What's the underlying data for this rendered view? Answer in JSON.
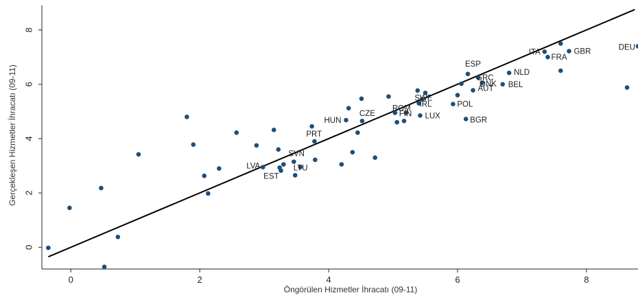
{
  "chart_data": {
    "type": "scatter",
    "title": "",
    "xlabel": "Öngörülen Hizmetler İhracatı (09-11)",
    "ylabel": "Gerçekleşen Hizmetler İhracatı (09-11)",
    "xlim": [
      -0.45,
      8.8
    ],
    "ylim": [
      -0.8,
      8.9
    ],
    "xticks": [
      0,
      2,
      4,
      6,
      8
    ],
    "yticks": [
      0,
      2,
      4,
      6,
      8
    ],
    "grid": false,
    "point_color": "#1f4e79",
    "fit_line": {
      "x": [
        -0.35,
        8.75
      ],
      "y": [
        -0.35,
        8.75
      ],
      "color": "#000000"
    },
    "points": [
      {
        "x": -0.35,
        "y": -0.02,
        "label": ""
      },
      {
        "x": -0.02,
        "y": 1.45,
        "label": ""
      },
      {
        "x": 0.47,
        "y": 2.18,
        "label": ""
      },
      {
        "x": 0.52,
        "y": -0.72,
        "label": ""
      },
      {
        "x": 0.73,
        "y": 0.38,
        "label": ""
      },
      {
        "x": 1.05,
        "y": 3.42,
        "label": ""
      },
      {
        "x": 1.8,
        "y": 4.8,
        "label": ""
      },
      {
        "x": 1.9,
        "y": 3.78,
        "label": ""
      },
      {
        "x": 2.07,
        "y": 2.63,
        "label": ""
      },
      {
        "x": 2.13,
        "y": 1.98,
        "label": ""
      },
      {
        "x": 2.3,
        "y": 2.9,
        "label": ""
      },
      {
        "x": 2.57,
        "y": 4.22,
        "label": ""
      },
      {
        "x": 2.88,
        "y": 3.75,
        "label": ""
      },
      {
        "x": 2.98,
        "y": 2.95,
        "label": "LVA"
      },
      {
        "x": 3.15,
        "y": 4.32,
        "label": ""
      },
      {
        "x": 3.22,
        "y": 3.6,
        "label": ""
      },
      {
        "x": 3.24,
        "y": 2.93,
        "label": ""
      },
      {
        "x": 3.26,
        "y": 2.82,
        "label": "EST"
      },
      {
        "x": 3.3,
        "y": 3.05,
        "label": ""
      },
      {
        "x": 3.46,
        "y": 3.15,
        "label": "SVN"
      },
      {
        "x": 3.48,
        "y": 2.65,
        "label": ""
      },
      {
        "x": 3.56,
        "y": 2.95,
        "label": "LTU"
      },
      {
        "x": 3.74,
        "y": 4.45,
        "label": ""
      },
      {
        "x": 3.78,
        "y": 3.9,
        "label": "PRT"
      },
      {
        "x": 3.79,
        "y": 3.22,
        "label": ""
      },
      {
        "x": 4.2,
        "y": 3.05,
        "label": ""
      },
      {
        "x": 4.27,
        "y": 4.68,
        "label": "HUN"
      },
      {
        "x": 4.31,
        "y": 5.12,
        "label": ""
      },
      {
        "x": 4.37,
        "y": 3.5,
        "label": ""
      },
      {
        "x": 4.45,
        "y": 4.22,
        "label": ""
      },
      {
        "x": 4.51,
        "y": 5.47,
        "label": ""
      },
      {
        "x": 4.52,
        "y": 4.65,
        "label": "CZE"
      },
      {
        "x": 4.72,
        "y": 3.3,
        "label": ""
      },
      {
        "x": 4.93,
        "y": 5.55,
        "label": ""
      },
      {
        "x": 5.03,
        "y": 4.95,
        "label": "ROM"
      },
      {
        "x": 5.06,
        "y": 4.6,
        "label": ""
      },
      {
        "x": 5.17,
        "y": 4.65,
        "label": ""
      },
      {
        "x": 5.2,
        "y": 4.95,
        "label": "FIN"
      },
      {
        "x": 5.38,
        "y": 5.77,
        "label": ""
      },
      {
        "x": 5.4,
        "y": 5.3,
        "label": "IRL"
      },
      {
        "x": 5.42,
        "y": 4.85,
        "label": "LUX"
      },
      {
        "x": 5.45,
        "y": 5.45,
        "label": "SWE"
      },
      {
        "x": 5.5,
        "y": 5.68,
        "label": ""
      },
      {
        "x": 5.93,
        "y": 5.27,
        "label": "POL"
      },
      {
        "x": 6.0,
        "y": 5.6,
        "label": ""
      },
      {
        "x": 6.06,
        "y": 6.02,
        "label": ""
      },
      {
        "x": 6.13,
        "y": 4.72,
        "label": "BGR"
      },
      {
        "x": 6.16,
        "y": 6.38,
        "label": "ESP"
      },
      {
        "x": 6.24,
        "y": 5.78,
        "label": "AUT"
      },
      {
        "x": 6.32,
        "y": 6.25,
        "label": "GRC"
      },
      {
        "x": 6.38,
        "y": 6.05,
        "label": "DNK"
      },
      {
        "x": 6.7,
        "y": 6.0,
        "label": "BEL"
      },
      {
        "x": 6.8,
        "y": 6.42,
        "label": "NLD"
      },
      {
        "x": 7.35,
        "y": 7.2,
        "label": "ITA"
      },
      {
        "x": 7.4,
        "y": 7.0,
        "label": "FRA"
      },
      {
        "x": 7.6,
        "y": 7.5,
        "label": ""
      },
      {
        "x": 7.6,
        "y": 6.5,
        "label": ""
      },
      {
        "x": 7.73,
        "y": 7.22,
        "label": "GBR"
      },
      {
        "x": 8.63,
        "y": 5.88,
        "label": ""
      },
      {
        "x": 8.8,
        "y": 7.4,
        "label": "DEU"
      }
    ]
  }
}
